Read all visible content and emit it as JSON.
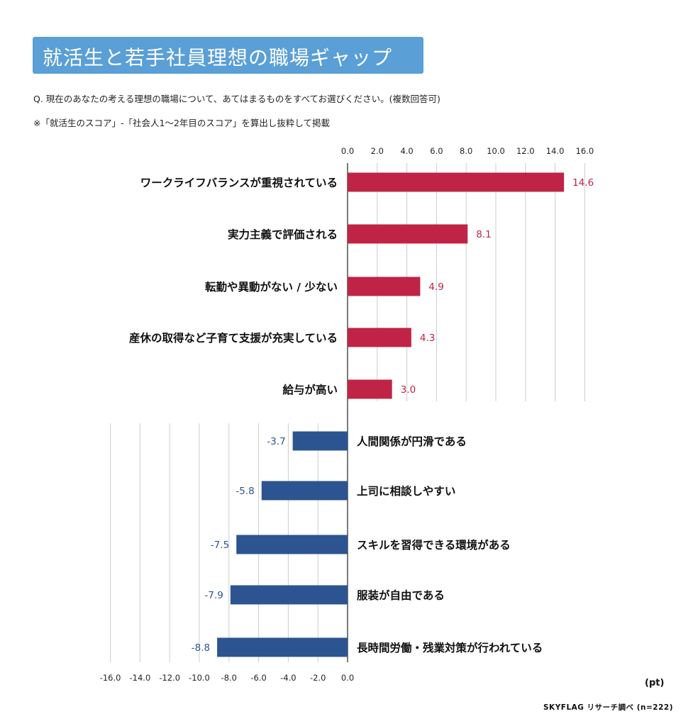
{
  "title": "就活生と若手社員理想の職場ギャップ",
  "question": "Q. 現在のあなたの考える理想の職場について、あてはまるものをすべてお選びください。(複数回答可)",
  "note": "※「就活生のスコア」-「社会人1〜2年目のスコア」を算出し抜粋して掲載",
  "unit": "(pt)",
  "source": "SKYFLAG リサーチ調べ (n=222)",
  "colors": {
    "positive": "#bf2446",
    "negative": "#2c5490",
    "title_bg": "#5a9fd6",
    "grid": "#cccccc"
  },
  "chart_data": {
    "type": "bar",
    "orientation": "horizontal",
    "categories": [
      "ワークライフバランスが重視されている",
      "実力主義で評価される",
      "転勤や異動がない / 少ない",
      "産休の取得など子育て支援が充実している",
      "給与が高い",
      "人間関係が円滑である",
      "上司に相談しやすい",
      "スキルを習得できる環境がある",
      "服装が自由である",
      "長時間労働・残業対策が行われている"
    ],
    "values": [
      14.6,
      8.1,
      4.9,
      4.3,
      3.0,
      -3.7,
      -5.8,
      -7.5,
      -7.9,
      -8.8
    ],
    "value_labels": [
      "14.6",
      "8.1",
      "4.9",
      "4.3",
      "3.0",
      "-3.7",
      "-5.8",
      "-7.5",
      "-7.9",
      "-8.8"
    ],
    "top_ticks": [
      "0.0",
      "2.0",
      "4.0",
      "6.0",
      "8.0",
      "10.0",
      "12.0",
      "14.0",
      "16.0"
    ],
    "bottom_ticks": [
      "-16.0",
      "-14.0",
      "-12.0",
      "-10.0",
      "-8.0",
      "-6.0",
      "-4.0",
      "-2.0",
      "0.0"
    ],
    "xlim": [
      -16,
      16
    ],
    "grid": true
  }
}
